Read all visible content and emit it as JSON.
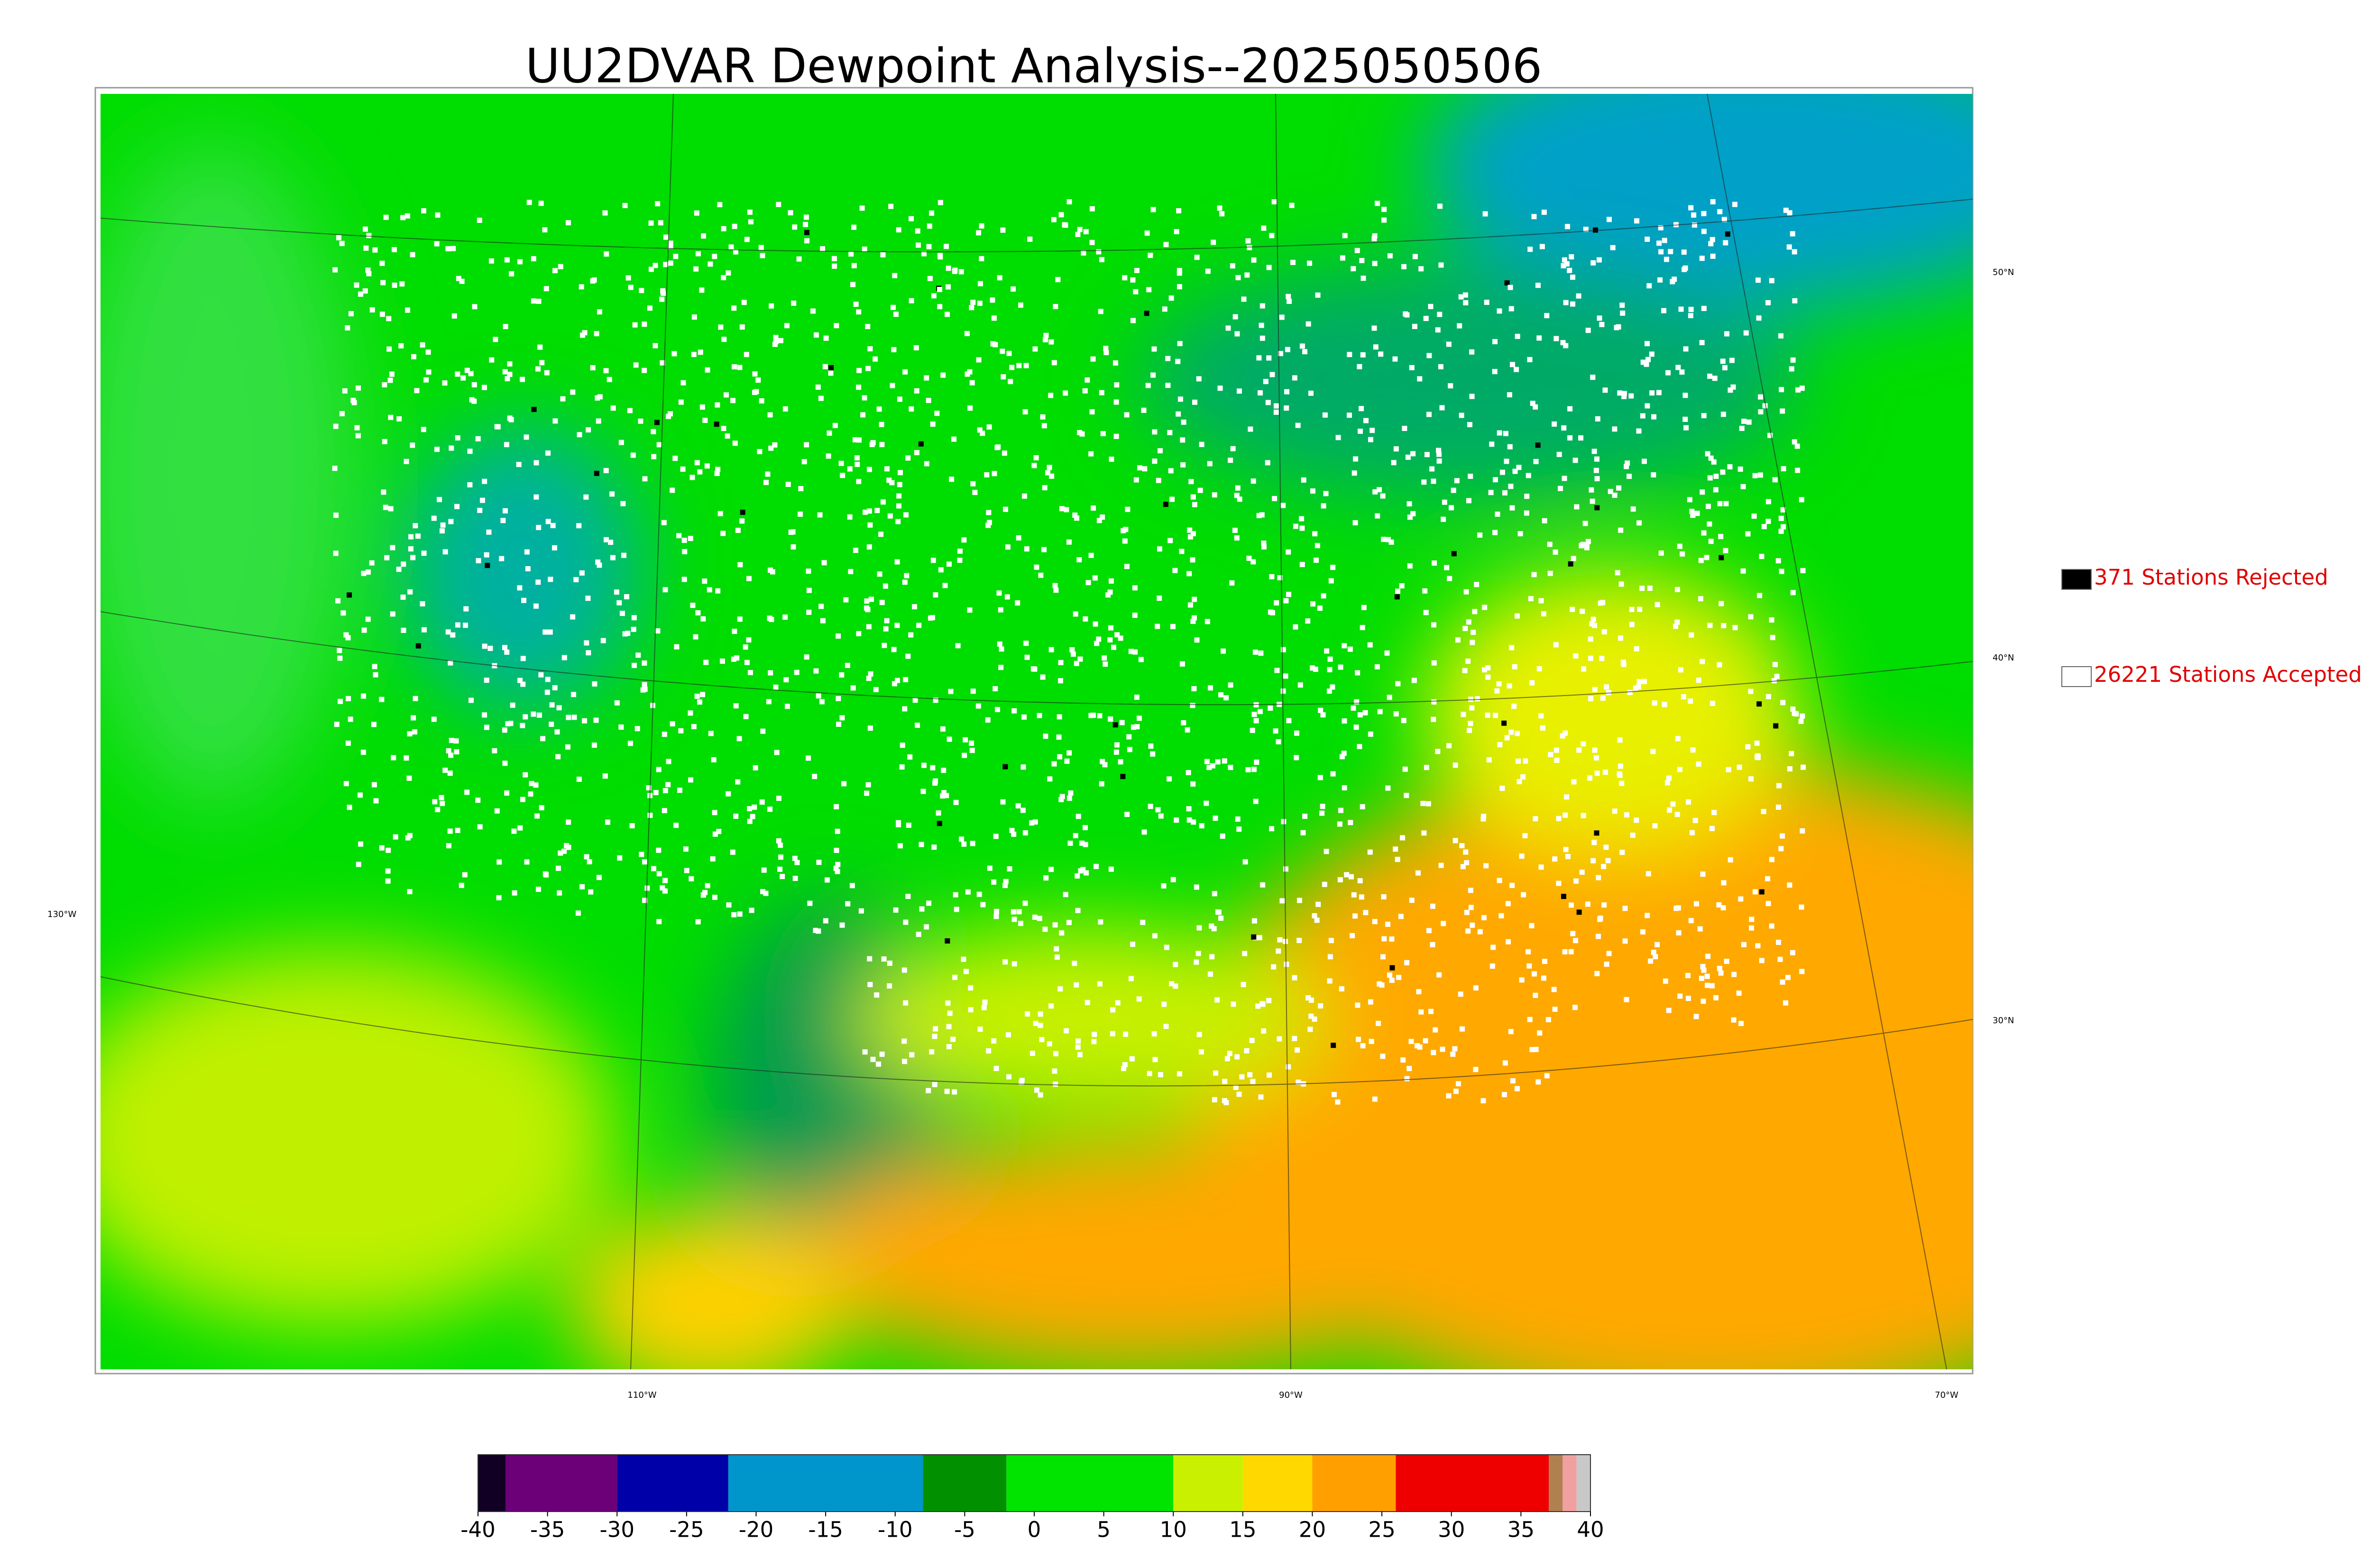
{
  "title": "UU2DVAR Dewpoint Analysis--2025050506",
  "map": {
    "latitude_labels": [
      "50°N",
      "40°N",
      "30°N"
    ],
    "longitude_labels": [
      "130°W",
      "110°W",
      "90°W",
      "70°W"
    ]
  },
  "legend": [
    {
      "label": "371 Stations Rejected",
      "color": "#000000"
    },
    {
      "label": "26221 Stations Accepted",
      "color": "#ffffff"
    }
  ],
  "colorbar": {
    "range": [
      -40,
      40
    ],
    "ticks": [
      -40,
      -35,
      -30,
      -25,
      -20,
      -15,
      -10,
      -5,
      0,
      5,
      10,
      15,
      20,
      25,
      30,
      35,
      40
    ],
    "segments": [
      {
        "from": -40,
        "to": -38,
        "color": "#120024"
      },
      {
        "from": -38,
        "to": -30,
        "color": "#6c0078"
      },
      {
        "from": -30,
        "to": -22,
        "color": "#0000a8"
      },
      {
        "from": -22,
        "to": -8,
        "color": "#0096cc"
      },
      {
        "from": -8,
        "to": -2,
        "color": "#009000"
      },
      {
        "from": -2,
        "to": 10,
        "color": "#00e400"
      },
      {
        "from": 10,
        "to": 15,
        "color": "#c8f000"
      },
      {
        "from": 15,
        "to": 20,
        "color": "#ffd800"
      },
      {
        "from": 20,
        "to": 26,
        "color": "#ffa000"
      },
      {
        "from": 26,
        "to": 37,
        "color": "#ee0000"
      },
      {
        "from": 37,
        "to": 38,
        "color": "#b08050"
      },
      {
        "from": 38,
        "to": 39,
        "color": "#f0a0a0"
      },
      {
        "from": 39,
        "to": 40,
        "color": "#c8c8c8"
      }
    ]
  }
}
